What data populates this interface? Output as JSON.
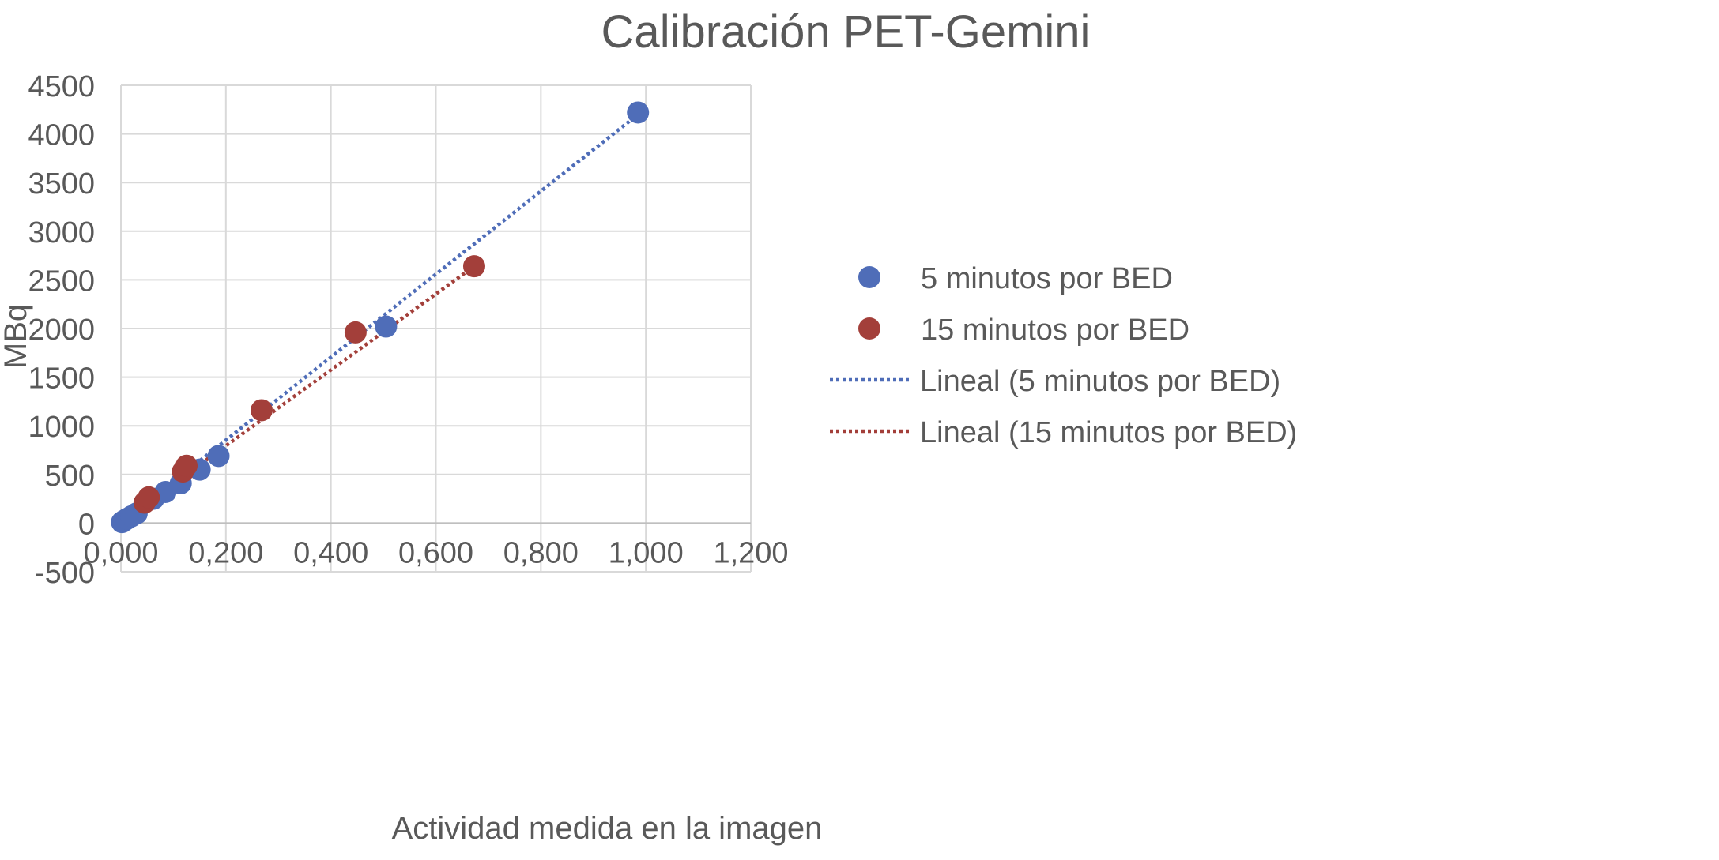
{
  "chart_data": {
    "type": "scatter",
    "title": "Calibración PET-Gemini",
    "xlabel": "Actividad medida en la imagen",
    "ylabel": "MBq",
    "xlim": [
      0,
      1.2
    ],
    "ylim": [
      -500,
      4500
    ],
    "x_ticks": [
      "0,000",
      "0,200",
      "0,400",
      "0,600",
      "0,800",
      "1,000",
      "1,200"
    ],
    "y_ticks": [
      "-500",
      "0",
      "500",
      "1000",
      "1500",
      "2000",
      "2500",
      "3000",
      "3500",
      "4000",
      "4500"
    ],
    "grid": "vertical and horizontal major gridlines",
    "legend_position": "right",
    "series": [
      {
        "name": "5 minutos por BED",
        "color": "#4f6db8",
        "marker": "circle",
        "points": [
          [
            0.002,
            10
          ],
          [
            0.006,
            25
          ],
          [
            0.012,
            45
          ],
          [
            0.02,
            70
          ],
          [
            0.03,
            100
          ],
          [
            0.062,
            250
          ],
          [
            0.085,
            320
          ],
          [
            0.114,
            410
          ],
          [
            0.15,
            550
          ],
          [
            0.186,
            690
          ],
          [
            0.505,
            2020
          ],
          [
            0.985,
            4220
          ]
        ]
      },
      {
        "name": "15 minutos por BED",
        "color": "#a33f3a",
        "marker": "circle",
        "points": [
          [
            0.045,
            210
          ],
          [
            0.053,
            265
          ],
          [
            0.118,
            530
          ],
          [
            0.125,
            590
          ],
          [
            0.268,
            1160
          ],
          [
            0.447,
            1960
          ],
          [
            0.673,
            2640
          ]
        ]
      }
    ],
    "trendlines": [
      {
        "name": "Lineal (5 minutos por BED)",
        "color": "#4f6db8",
        "style": "dotted",
        "from": [
          0,
          0
        ],
        "to": [
          0.985,
          4200
        ]
      },
      {
        "name": "Lineal (15 minutos por BED)",
        "color": "#a33f3a",
        "style": "dotted",
        "from": [
          0.045,
          190
        ],
        "to": [
          0.673,
          2640
        ]
      }
    ]
  }
}
